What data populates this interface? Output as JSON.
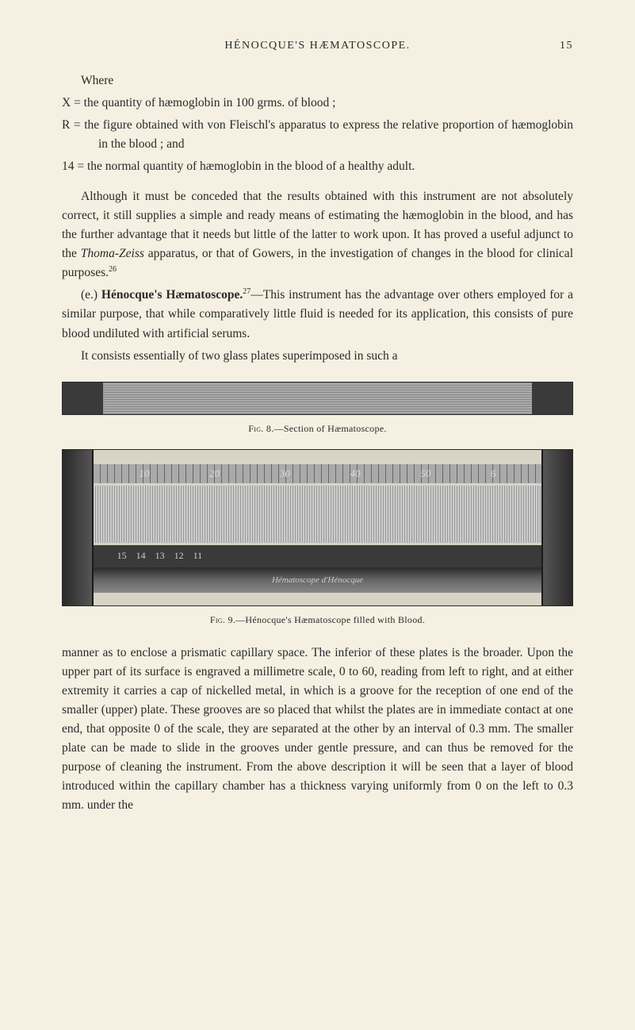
{
  "page": {
    "header_title": "HÉNOCQUE'S HÆMATOSCOPE.",
    "page_number": "15"
  },
  "text": {
    "where": "Where",
    "x_def": "X = the quantity of hæmoglobin in 100 grms. of blood ;",
    "r_def": "R = the figure obtained with von Fleischl's apparatus to express the relative proportion of hæmoglobin in the blood ; and",
    "fourteen_def": "14 = the normal quantity of hæmoglobin in the blood of a healthy adult.",
    "para1_a": "Although it must be conceded that the results obtained with this instrument are not absolutely correct, it still supplies a simple and ready means of estimating the hæmoglobin in the blood, and has the further advantage that it needs but little of the latter to work upon. It has proved a useful adjunct to the ",
    "para1_thoma": "Thoma-Zeiss",
    "para1_b": " apparatus, or that of Gowers, in the investigation of changes in the blood for clinical purposes.",
    "sup26": "26",
    "para2_e": "(e.) ",
    "para2_bold": "Hénocque's Hæmatoscope.",
    "sup27": "27",
    "para2_a": "—This instrument has the advantage over others employed for a similar purpose, that while comparatively little fluid is needed for its application, this consists of pure blood undiluted with artificial serums.",
    "para3": "It consists essentially of two glass plates superimposed in such a",
    "fig8_label": "Fig. 8.",
    "fig8_caption": "—Section of Hæmatoscope.",
    "fig9_label": "Fig. 9.",
    "fig9_caption": "—Hénocque's Hæmatoscope filled with Blood.",
    "fig9_scale": {
      "s10": "10",
      "s20": "20",
      "s30": "30",
      "s40": "40",
      "s50": "50",
      "s6": "6"
    },
    "fig9_lower": {
      "n15": "15",
      "n14": "14",
      "n13": "13",
      "n12": "12",
      "n11": "11"
    },
    "fig9_bottom": "Hématoscope d'Hénocque",
    "para4": "manner as to enclose a prismatic capillary space. The inferior of these plates is the broader. Upon the upper part of its surface is engraved a millimetre scale, 0 to 60, reading from left to right, and at either extremity it carries a cap of nickelled metal, in which is a groove for the reception of one end of the smaller (upper) plate. These grooves are so placed that whilst the plates are in immediate contact at one end, that opposite 0 of the scale, they are separated at the other by an interval of 0.3 mm. The smaller plate can be made to slide in the grooves under gentle pressure, and can thus be removed for the purpose of cleaning the instrument. From the above description it will be seen that a layer of blood introduced within the capillary chamber has a thickness varying uniformly from 0 on the left to 0.3 mm. under the"
  },
  "colors": {
    "background": "#f5f0e1",
    "text": "#2a2a2a"
  }
}
